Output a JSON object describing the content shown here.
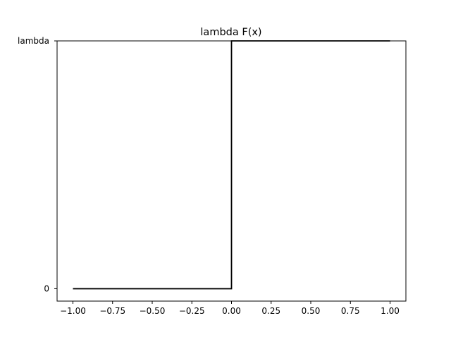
{
  "chart_data": {
    "type": "line",
    "title": "lambda F(x)",
    "xlabel": "",
    "ylabel": "",
    "xlim": [
      -1.1,
      1.1
    ],
    "ylim": [
      -0.05,
      1.0
    ],
    "x_ticks": [
      -1.0,
      -0.75,
      -0.5,
      -0.25,
      0.0,
      0.25,
      0.5,
      0.75,
      1.0
    ],
    "x_tick_labels": [
      "−1.00",
      "−0.75",
      "−0.50",
      "−0.25",
      "0.00",
      "0.25",
      "0.50",
      "0.75",
      "1.00"
    ],
    "y_ticks": [
      0,
      1
    ],
    "y_tick_labels": [
      "0",
      "lambda"
    ],
    "grid": false,
    "legend": "none",
    "series": [
      {
        "color": "#000000",
        "x": [
          -1.0,
          0.0,
          0.0,
          1.0
        ],
        "y": [
          0,
          0,
          1,
          1
        ]
      }
    ]
  }
}
